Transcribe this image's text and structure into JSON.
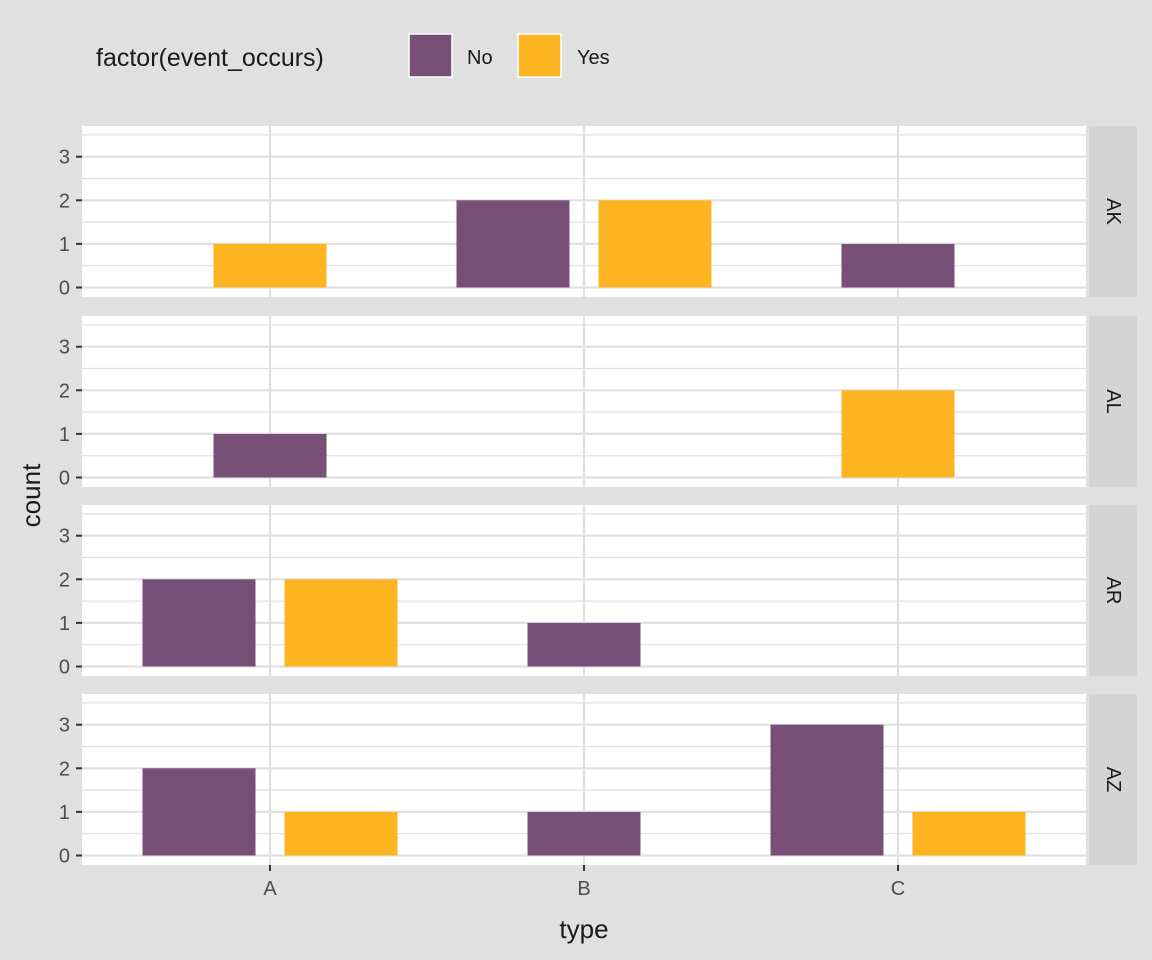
{
  "colors": {
    "background": "#e0e0e0",
    "panel": "#ffffff",
    "strip": "#d4d4d4",
    "grid": "#e0e0e0",
    "tick_text": "#4d4d4d",
    "text": "#1a1a1a",
    "no": "#785077",
    "yes": "#fcb520"
  },
  "chart_data": {
    "type": "bar",
    "title": "",
    "xlabel": "type",
    "ylabel": "count",
    "categories": [
      "A",
      "B",
      "C"
    ],
    "ylim": [
      0,
      3.9
    ],
    "y_ticks": [
      0,
      1,
      2,
      3
    ],
    "grid": true,
    "legend": {
      "title": "factor(event_occurs)",
      "position": "top-left",
      "entries": [
        {
          "key": "No",
          "label": "No",
          "color": "#785077"
        },
        {
          "key": "Yes",
          "label": "Yes",
          "color": "#fcb520"
        }
      ]
    },
    "facets": [
      {
        "label": "AK",
        "bars": [
          {
            "category": "A",
            "series": "Yes",
            "value": 1
          },
          {
            "category": "B",
            "series": "No",
            "value": 2
          },
          {
            "category": "B",
            "series": "Yes",
            "value": 2
          },
          {
            "category": "C",
            "series": "No",
            "value": 1
          }
        ]
      },
      {
        "label": "AL",
        "bars": [
          {
            "category": "A",
            "series": "No",
            "value": 1
          },
          {
            "category": "C",
            "series": "Yes",
            "value": 2
          }
        ]
      },
      {
        "label": "AR",
        "bars": [
          {
            "category": "A",
            "series": "No",
            "value": 2
          },
          {
            "category": "A",
            "series": "Yes",
            "value": 2
          },
          {
            "category": "B",
            "series": "No",
            "value": 1
          }
        ]
      },
      {
        "label": "AZ",
        "bars": [
          {
            "category": "A",
            "series": "No",
            "value": 2
          },
          {
            "category": "A",
            "series": "Yes",
            "value": 1
          },
          {
            "category": "B",
            "series": "No",
            "value": 1
          },
          {
            "category": "C",
            "series": "No",
            "value": 3
          },
          {
            "category": "C",
            "series": "Yes",
            "value": 1
          }
        ]
      }
    ]
  }
}
